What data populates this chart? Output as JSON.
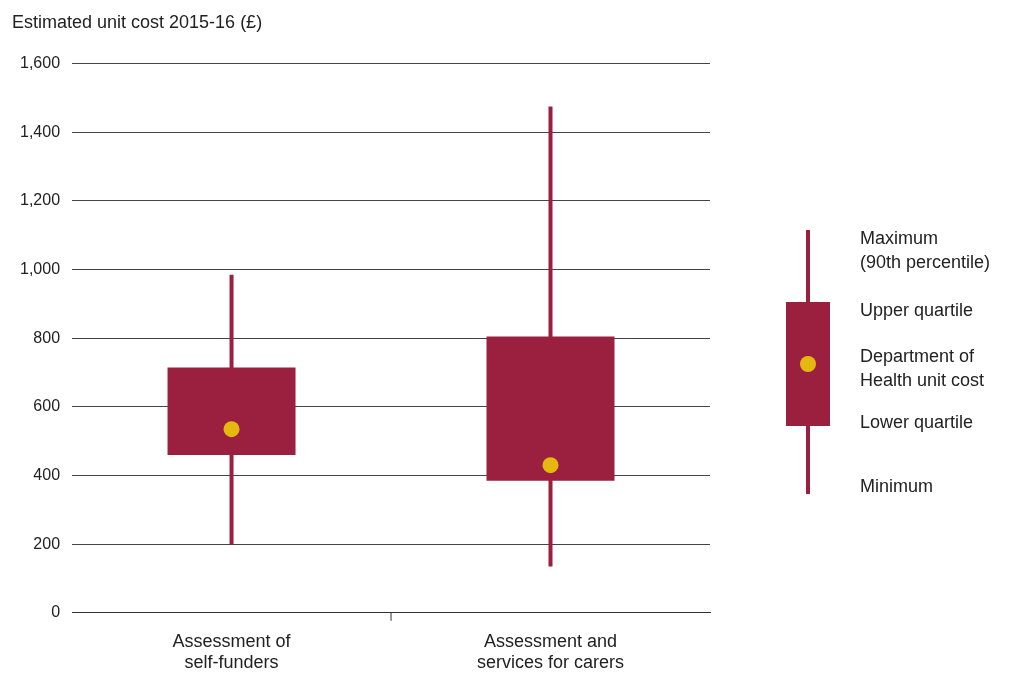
{
  "chart_data": {
    "type": "box",
    "ylabel": "Estimated unit cost 2015-16 (£)",
    "categories": [
      "Assessment of\nself-funders",
      "Assessment and\nservices for carers"
    ],
    "color": "#9b2040",
    "boxes": [
      {
        "low": 200,
        "q1": 460,
        "q3": 715,
        "high": 985
      },
      {
        "low": 135,
        "q1": 385,
        "q3": 805,
        "high": 1475
      }
    ],
    "series": [
      {
        "type": "scatter",
        "name": "Department of\nHealth unit cost",
        "color": "#e5b80f",
        "x": [
          "Assessment of\nself-funders",
          "Assessment and\nservices for carers"
        ],
        "values": [
          535,
          430
        ]
      }
    ],
    "annotations": [
      "Maximum\n(90th percentile)",
      "Upper quartile",
      "Lower quartile",
      "Minimum"
    ],
    "ylim": [
      0,
      1600
    ],
    "yticks": [
      0,
      200,
      400,
      600,
      800,
      {
        "value": 1000,
        "label": "1,000"
      },
      {
        "value": 1200,
        "label": "1,200"
      },
      {
        "value": 1400,
        "label": "1,400"
      },
      {
        "value": 1600,
        "label": "1,600"
      }
    ],
    "grid": "y",
    "legend": "right",
    "marker": "circle"
  }
}
